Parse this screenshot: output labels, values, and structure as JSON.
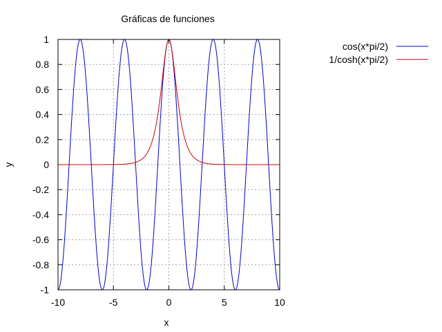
{
  "chart_data": {
    "type": "line",
    "title": "Gráficas de funciones",
    "xlabel": "x",
    "ylabel": "y",
    "xlim": [
      -10,
      10
    ],
    "ylim": [
      -1,
      1
    ],
    "x_ticks": [
      "-10",
      "-5",
      "0",
      "5",
      "10"
    ],
    "y_ticks": [
      "1",
      "0.8",
      "0.6",
      "0.4",
      "0.2",
      "0",
      "-0.2",
      "-0.4",
      "-0.6",
      "-0.8",
      "-1"
    ],
    "grid": true,
    "legend_position": "right, outside plot, top",
    "series": [
      {
        "name": "cos(x*pi/2)",
        "color": "#0000cc",
        "x": [
          -10,
          -9.5,
          -9,
          -8.5,
          -8,
          -7.5,
          -7,
          -6.5,
          -6,
          -5.5,
          -5,
          -4.5,
          -4,
          -3.5,
          -3,
          -2.5,
          -2,
          -1.5,
          -1,
          -0.5,
          0,
          0.5,
          1,
          1.5,
          2,
          2.5,
          3,
          3.5,
          4,
          4.5,
          5,
          5.5,
          6,
          6.5,
          7,
          7.5,
          8,
          8.5,
          9,
          9.5,
          10
        ],
        "y": [
          -1,
          -0.707,
          0,
          0.707,
          1,
          0.707,
          0,
          -0.707,
          -1,
          -0.707,
          0,
          0.707,
          1,
          0.707,
          0,
          -0.707,
          -1,
          -0.707,
          0,
          0.707,
          1,
          0.707,
          0,
          -0.707,
          -1,
          -0.707,
          0,
          0.707,
          1,
          0.707,
          0,
          -0.707,
          -1,
          -0.707,
          0,
          0.707,
          1,
          0.707,
          0,
          -0.707,
          -1
        ]
      },
      {
        "name": "1/cosh(x*pi/2)",
        "color": "#cc0000",
        "x": [
          -10,
          -9.5,
          -9,
          -8.5,
          -8,
          -7.5,
          -7,
          -6.5,
          -6,
          -5.5,
          -5,
          -4.5,
          -4,
          -3.5,
          -3,
          -2.5,
          -2,
          -1.5,
          -1,
          -0.5,
          0,
          0.5,
          1,
          1.5,
          2,
          2.5,
          3,
          3.5,
          4,
          4.5,
          5,
          5.5,
          6,
          6.5,
          7,
          7.5,
          8,
          8.5,
          9,
          9.5,
          10
        ],
        "y": [
          0,
          0,
          0,
          0,
          0,
          0,
          0,
          0,
          0,
          0,
          0.001,
          0.002,
          0.004,
          0.008,
          0.018,
          0.039,
          0.086,
          0.189,
          0.399,
          0.754,
          1,
          0.754,
          0.399,
          0.189,
          0.086,
          0.039,
          0.018,
          0.008,
          0.004,
          0.002,
          0.001,
          0,
          0,
          0,
          0,
          0,
          0,
          0,
          0,
          0,
          0
        ]
      }
    ]
  }
}
